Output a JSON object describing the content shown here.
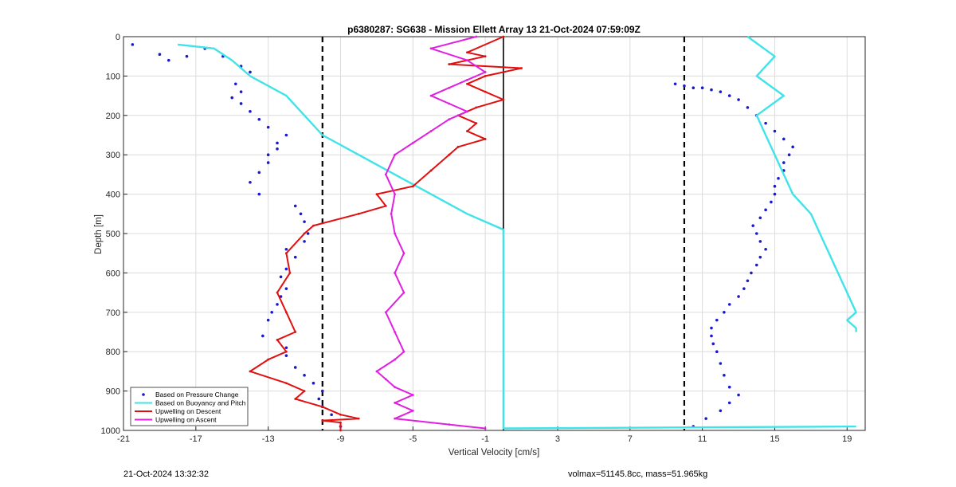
{
  "chart_data": {
    "type": "line",
    "title": "p6380287: SG638 - Mission Ellett Array 13 21-Oct-2024 07:59:09Z",
    "xlabel": "Vertical Velocity [cm/s]",
    "ylabel": "Depth [m]",
    "xlim": [
      -21,
      20
    ],
    "ylim": [
      1000,
      0
    ],
    "y_reversed": true,
    "xticks": [
      -21,
      -17,
      -13,
      -9,
      -5,
      -1,
      3,
      7,
      11,
      15,
      19
    ],
    "yticks": [
      0,
      100,
      200,
      300,
      400,
      500,
      600,
      700,
      800,
      900,
      1000
    ],
    "grid": true,
    "legend_position": "bottom-left",
    "reference_lines": [
      {
        "x": -10,
        "style": "dashed",
        "color": "#000000"
      },
      {
        "x": 10,
        "style": "dashed",
        "color": "#000000"
      },
      {
        "x": 0,
        "style": "solid",
        "color": "#000000"
      }
    ],
    "series": [
      {
        "name": "Based on Pressure Change",
        "style": "dots",
        "color": "#1a1acc",
        "descent": {
          "x": [
            -20.5,
            -19,
            -18.5,
            -17.5,
            -16.5,
            -15.5,
            -14.5,
            -14,
            -14.8,
            -14.5,
            -15,
            -14.5,
            -14,
            -13.5,
            -13,
            -12,
            -12.5,
            -12.5,
            -13,
            -13,
            -13.5,
            -14,
            -13.5,
            -11.5,
            -11.2,
            -11,
            -10.8,
            -11,
            -12,
            -11.5,
            -12,
            -12.3,
            -12,
            -12.3,
            -12.5,
            -12.8,
            -13,
            -13.3,
            -12,
            -12,
            -11.5,
            -11,
            -10.5,
            -10,
            -10.2,
            -10,
            -9.5,
            -9
          ],
          "y": [
            20,
            45,
            60,
            50,
            30,
            50,
            75,
            90,
            120,
            140,
            155,
            170,
            190,
            210,
            230,
            250,
            270,
            285,
            300,
            320,
            345,
            370,
            400,
            430,
            450,
            470,
            500,
            520,
            540,
            560,
            590,
            610,
            640,
            660,
            680,
            700,
            720,
            760,
            790,
            810,
            840,
            860,
            880,
            900,
            920,
            940,
            960,
            990
          ]
        },
        "ascent": {
          "x": [
            10.5,
            11.2,
            12,
            12.5,
            13,
            12.5,
            12.2,
            12,
            11.8,
            11.6,
            11.5,
            11.5,
            11.8,
            12.2,
            12.5,
            13,
            13.3,
            13.5,
            13.7,
            14,
            14.2,
            14.5,
            14.2,
            14,
            13.8,
            14.2,
            14.5,
            14.8,
            15,
            15,
            15.2,
            15.5,
            15.5,
            15.8,
            16,
            15.5,
            15,
            14.5,
            14,
            13.5,
            13,
            12.5,
            12,
            11.5,
            11,
            10.5,
            10,
            9.5
          ],
          "y": [
            990,
            970,
            950,
            930,
            910,
            890,
            860,
            830,
            800,
            780,
            760,
            740,
            720,
            700,
            680,
            660,
            640,
            620,
            600,
            580,
            560,
            540,
            520,
            500,
            480,
            460,
            440,
            420,
            400,
            380,
            360,
            340,
            320,
            300,
            280,
            260,
            240,
            220,
            200,
            180,
            160,
            150,
            140,
            135,
            130,
            130,
            125,
            120
          ]
        }
      },
      {
        "name": "Based on Buoyancy and Pitch",
        "style": "line",
        "color": "#3fe3e8",
        "descent": {
          "x": [
            -18,
            -16,
            -15,
            -14,
            -12,
            -11,
            -10,
            -8,
            -6,
            -4,
            -2,
            -0.5,
            0,
            0,
            0,
            0,
            0,
            0,
            0,
            19.5
          ],
          "y": [
            20,
            30,
            60,
            100,
            150,
            200,
            250,
            300,
            350,
            400,
            450,
            480,
            490,
            600,
            700,
            800,
            900,
            980,
            995,
            990
          ]
        },
        "ascent": {
          "x": [
            13.5,
            15,
            14,
            15.5,
            14,
            14.5,
            15,
            15.5,
            16,
            17,
            17.5,
            18,
            18.5,
            19,
            19.5,
            19,
            19.5,
            19.5
          ],
          "y": [
            0,
            50,
            100,
            150,
            200,
            250,
            300,
            350,
            400,
            450,
            500,
            550,
            600,
            650,
            700,
            720,
            740,
            750
          ]
        }
      },
      {
        "name": "Upwelling on Descent",
        "style": "line",
        "color": "#e01010",
        "x": [
          0,
          -2,
          -1,
          -3,
          1,
          -1,
          -2,
          -1,
          0,
          -1.5,
          -2.5,
          -1.5,
          -2,
          -1,
          -2.5,
          -3,
          -4,
          -5,
          -7,
          -6.5,
          -8,
          -10.5,
          -11,
          -12,
          -11.8,
          -12.5,
          -12,
          -11.5,
          -12.5,
          -12,
          -13,
          -14,
          -12,
          -11,
          -11.5,
          -10,
          -9,
          -8,
          -10,
          -9,
          -9,
          -9
        ],
        "y": [
          0,
          40,
          50,
          70,
          80,
          100,
          120,
          140,
          160,
          180,
          200,
          220,
          240,
          260,
          280,
          300,
          340,
          380,
          400,
          430,
          450,
          480,
          500,
          550,
          600,
          650,
          700,
          750,
          770,
          800,
          820,
          850,
          880,
          900,
          920,
          940,
          960,
          970,
          975,
          980,
          990,
          1000
        ]
      },
      {
        "name": "Upwelling on Ascent",
        "style": "line",
        "color": "#e020e0",
        "x": [
          -1.5,
          -4,
          -2,
          -1,
          -2,
          -3,
          -4,
          -3,
          -2,
          -3,
          -4,
          -5,
          -6,
          -6.5,
          -6,
          -6.2,
          -6,
          -5.5,
          -6,
          -5.5,
          -6.5,
          -6,
          -5.5,
          -6,
          -7,
          -6.5,
          -6,
          -5,
          -6,
          -5,
          -6,
          -3,
          -1
        ],
        "y": [
          0,
          30,
          60,
          90,
          110,
          130,
          150,
          170,
          190,
          210,
          240,
          270,
          300,
          350,
          400,
          450,
          500,
          550,
          600,
          650,
          700,
          750,
          800,
          820,
          850,
          870,
          890,
          910,
          930,
          950,
          970,
          985,
          995
        ]
      }
    ],
    "legend": [
      "Based on Pressure Change",
      "Based on Buoyancy and Pitch",
      "Upwelling on Descent",
      "Upwelling on Ascent"
    ]
  },
  "footer": {
    "left": "21-Oct-2024 13:32:32",
    "right": "volmax=51145.8cc, mass=51.965kg"
  }
}
